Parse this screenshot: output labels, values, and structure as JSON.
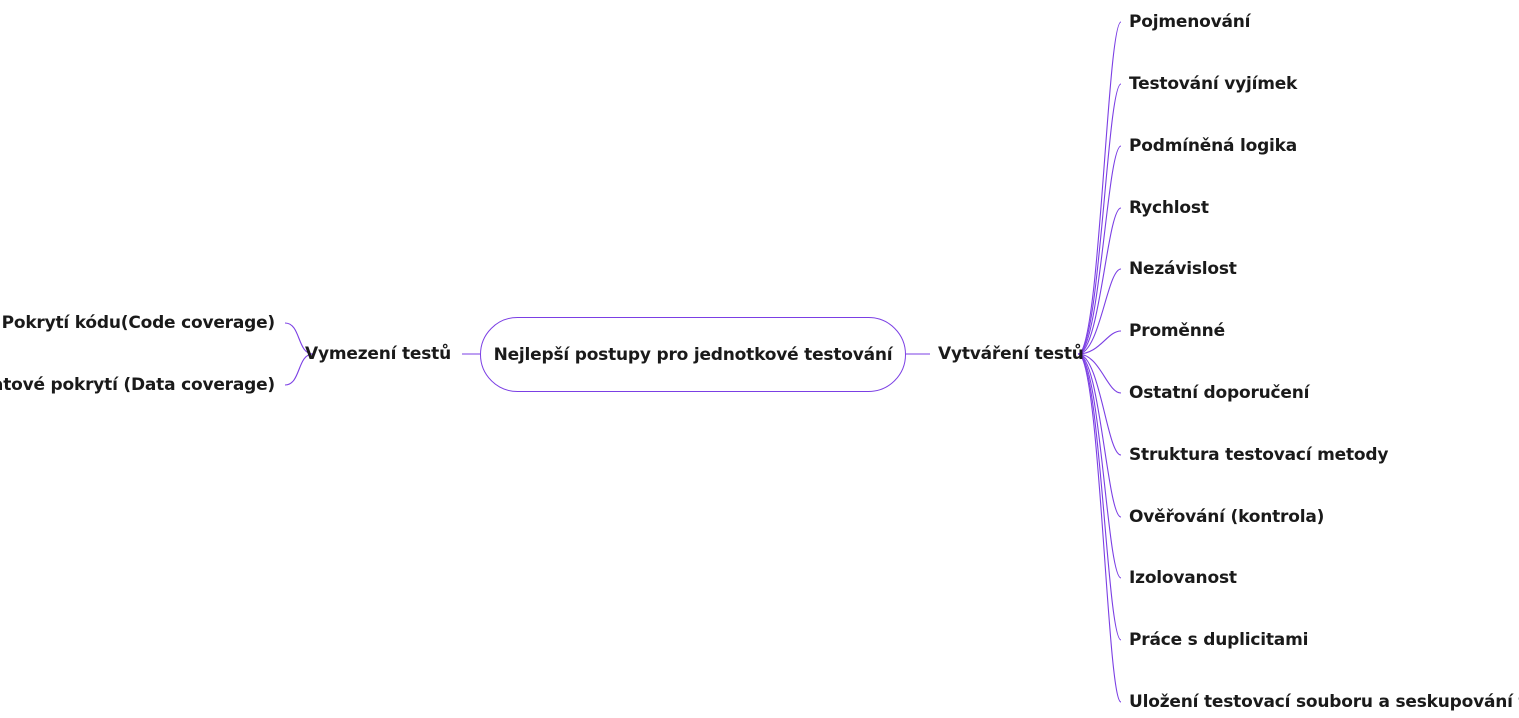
{
  "accent_color": "#7b3fe4",
  "central": {
    "label": "Nejlepší postupy pro jednotkové testování"
  },
  "left_branch": {
    "label": "Vymezení testů",
    "children": [
      "Pokrytí kódu(Code coverage)",
      "Datové pokrytí (Data coverage)"
    ]
  },
  "right_branch": {
    "label": "Vytváření testů",
    "children": [
      "Pojmenování",
      "Testování vyjímek",
      "Podmíněná logika",
      "Rychlost",
      "Nezávislost",
      "Proměnné",
      "Ostatní doporučení",
      "Struktura testovací metody",
      "Ověřování (kontrola)",
      "Izolovanost",
      "Práce s duplicitami",
      "Uložení testovací souboru a seskupování testů"
    ]
  }
}
